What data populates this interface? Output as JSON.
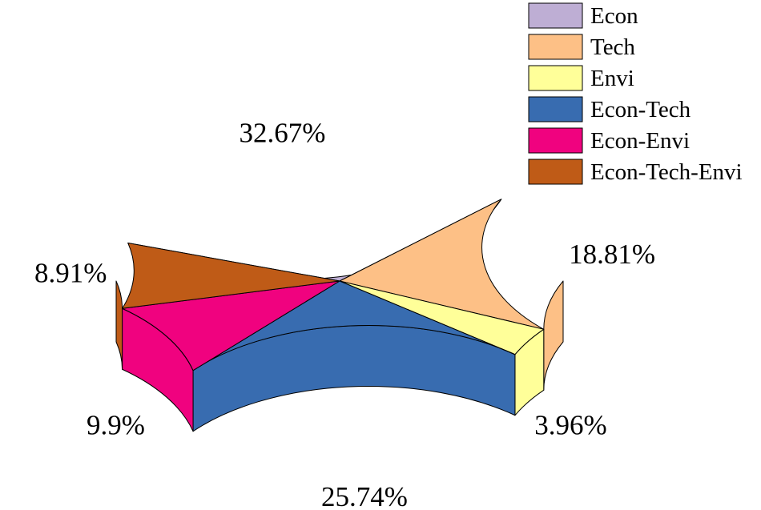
{
  "chart_data": {
    "type": "pie",
    "style": "3d",
    "legend_position": "top-right",
    "categories": [
      "Econ",
      "Tech",
      "Envi",
      "Econ-Tech",
      "Econ-Envi",
      "Econ-Tech-Envi"
    ],
    "values": [
      32.67,
      18.81,
      3.96,
      25.74,
      9.9,
      8.91
    ],
    "value_labels": [
      "32.67%",
      "18.81%",
      "3.96%",
      "25.74%",
      "9.9%",
      "8.91%"
    ],
    "colors": [
      "#BEAED4",
      "#FDC086",
      "#FFFF99",
      "#386CB0",
      "#F0027F",
      "#BF5B17"
    ],
    "title": "",
    "xlabel": "",
    "ylabel": ""
  }
}
